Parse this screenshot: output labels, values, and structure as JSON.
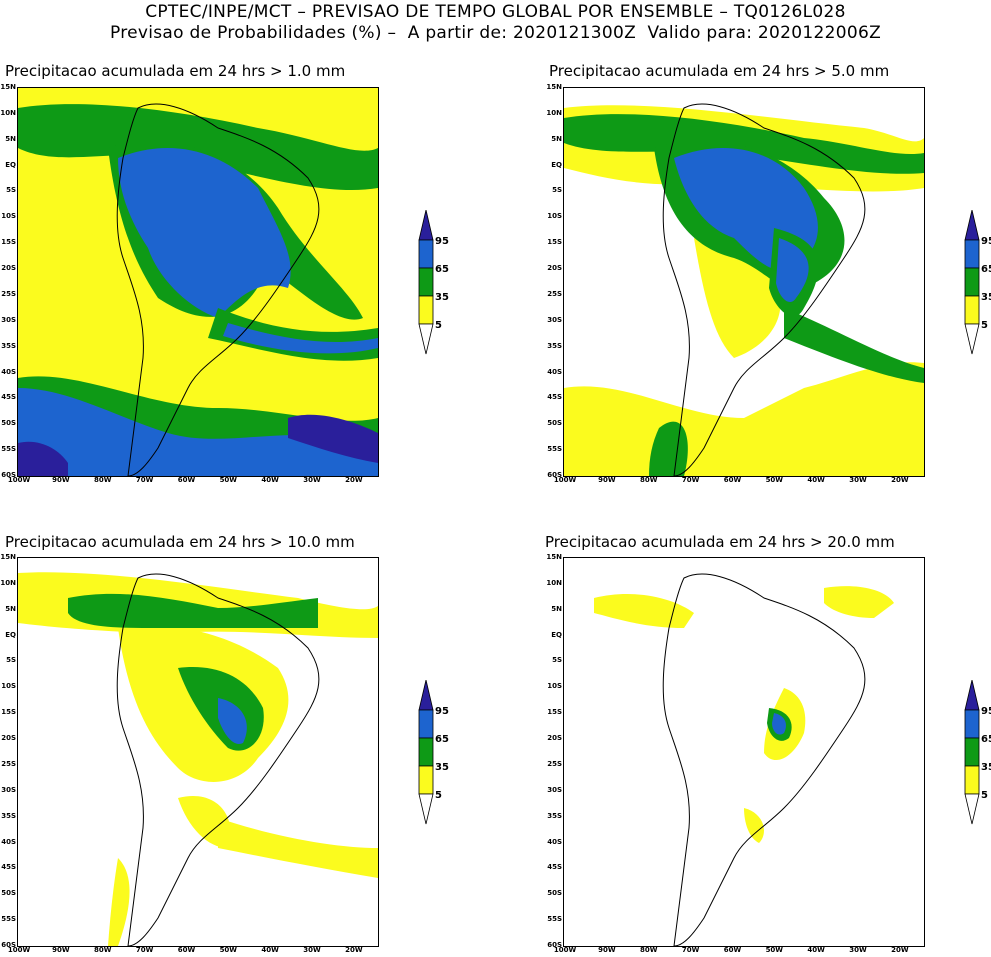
{
  "header": {
    "title_line1": "CPTEC/INPE/MCT – PREVISAO DE TEMPO GLOBAL POR ENSEMBLE – TQ0126L028",
    "title_line2": "Previsao de Probabilidades (%) –  A partir de: 2020121300Z  Valido para: 2020122006Z"
  },
  "axes": {
    "lat_labels": [
      "15N",
      "10N",
      "5N",
      "EQ",
      "5S",
      "10S",
      "15S",
      "20S",
      "25S",
      "30S",
      "35S",
      "40S",
      "45S",
      "50S",
      "55S",
      "60S"
    ],
    "lon_labels": [
      "100W",
      "90W",
      "80W",
      "70W",
      "60W",
      "50W",
      "40W",
      "30W",
      "20W"
    ]
  },
  "colorbar": {
    "labels": [
      "95",
      "65",
      "35",
      "5"
    ],
    "colors": {
      "c95": "#2a1f9b",
      "c65": "#1d64cf",
      "c35": "#0e9a16",
      "c5": "#fbfb1e"
    }
  },
  "panels": [
    {
      "title": "Precipitacao acumulada em 24 hrs > 1.0 mm"
    },
    {
      "title": "Precipitacao acumulada em 24 hrs > 5.0 mm"
    },
    {
      "title": "Precipitacao acumulada em 24 hrs > 10.0 mm"
    },
    {
      "title": "Precipitacao acumulada em 24 hrs > 20.0 mm"
    }
  ]
}
